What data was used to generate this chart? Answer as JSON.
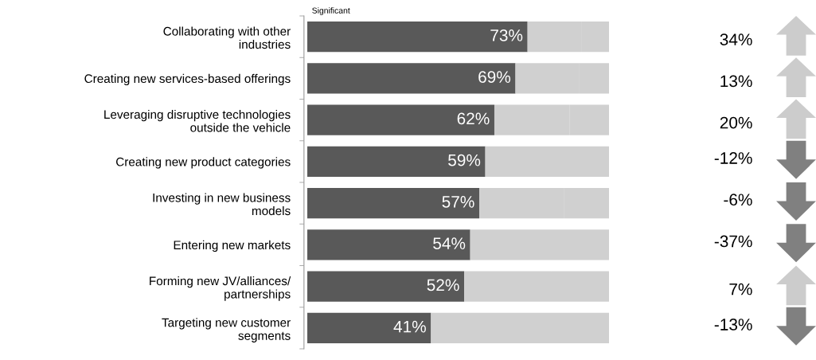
{
  "chart_data": [
    {
      "type": "bar",
      "orientation": "horizontal",
      "stacked": true,
      "legend": false,
      "grid": false,
      "tick_labels": "y",
      "categories": [
        "Collaborating with other\nindustries",
        "Creating new services-based offerings",
        "Leveraging disruptive technologies\noutside the vehicle",
        "Creating new product categories",
        "Investing in new business\nmodels",
        "Entering new markets",
        "Forming new JV/alliances/\npartnerships",
        "Targeting new customer\nsegments"
      ],
      "xlim": [
        0,
        100
      ],
      "series": [
        {
          "name": "Significant",
          "color": "#595959",
          "values": [
            73,
            69,
            62,
            59,
            57,
            54,
            52,
            41
          ],
          "value_labels": [
            "73%",
            "69%",
            "62%",
            "59%",
            "57%",
            "54%",
            "52%",
            "41%"
          ]
        },
        {
          "color": "#d0d0d0",
          "values": [
            18,
            21,
            25,
            41,
            28,
            22,
            29,
            59
          ]
        },
        {
          "color": "#d0d0d0",
          "values": [
            9,
            10,
            13,
            null,
            15,
            24,
            19,
            null
          ]
        }
      ]
    },
    {
      "type": "other",
      "categories": [
        null,
        null,
        null,
        null,
        null,
        null,
        null,
        null
      ],
      "values": [
        34,
        13,
        20,
        -12,
        -6,
        -37,
        7,
        -13
      ],
      "value_labels": [
        "34%",
        "13%",
        "20%",
        "-12%",
        "-6%",
        "-37%",
        "7%",
        "-13%"
      ],
      "colors": [
        "#cccccc",
        "#cccccc",
        "#cccccc",
        "#808080",
        "#808080",
        "#808080",
        "#cccccc",
        "#808080"
      ]
    }
  ]
}
